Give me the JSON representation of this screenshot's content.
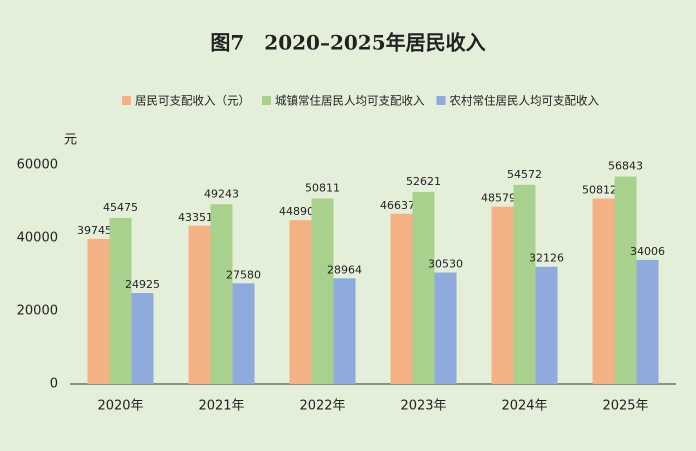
{
  "chart_data": {
    "type": "bar",
    "title": "图7　2020–2025年居民收入",
    "y_unit": "元",
    "categories": [
      "2020年",
      "2021年",
      "2022年",
      "2023年",
      "2024年",
      "2025年"
    ],
    "series": [
      {
        "name": "居民可支配收入（元）",
        "color": "#f4b183",
        "values": [
          39745,
          43351,
          44890,
          46637,
          48579,
          50812
        ]
      },
      {
        "name": "城镇常住居民人均可支配收入",
        "color": "#a9d18e",
        "values": [
          45475,
          49243,
          50811,
          52621,
          54572,
          56843
        ]
      },
      {
        "name": "农村常住居民人均可支配收入",
        "color": "#8faadc",
        "values": [
          24925,
          27580,
          28964,
          30530,
          32126,
          34006
        ]
      }
    ],
    "ylim": [
      0,
      60000
    ],
    "yticks": [
      0,
      20000,
      40000,
      60000
    ],
    "grid": false
  }
}
